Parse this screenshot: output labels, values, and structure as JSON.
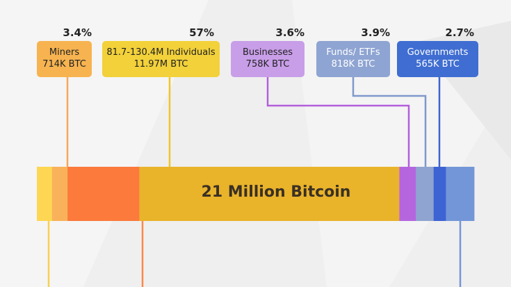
{
  "chart_data": {
    "type": "bar",
    "orientation": "stacked-horizontal",
    "title": "21 Million Bitcoin",
    "total_btc_millions": 21,
    "callouts": [
      {
        "key": "miners",
        "name": "Miners",
        "amount": "714K BTC",
        "percent": "3.4%",
        "color": "#f7b350"
      },
      {
        "key": "individuals",
        "name": "81.7-130.4M Individuals",
        "amount": "11.97M BTC",
        "percent": "57%",
        "color": "#f2d13a"
      },
      {
        "key": "businesses",
        "name": "Businesses",
        "amount": "758K BTC",
        "percent": "3.6%",
        "color": "#c89ee8"
      },
      {
        "key": "funds",
        "name": "Funds/ ETFs",
        "amount": "818K BTC",
        "percent": "3.9%",
        "color": "#8ea4d2"
      },
      {
        "key": "governments",
        "name": "Governments",
        "amount": "565K BTC",
        "percent": "2.7%",
        "color": "#3f6dd1"
      }
    ],
    "segments": [
      {
        "label": "",
        "value": 0.7,
        "color": "#fdd653"
      },
      {
        "label": "Miners",
        "value": 0.714,
        "color": "#f9b25a"
      },
      {
        "label": "",
        "value": 3.3,
        "color": "#fb7a3c"
      },
      {
        "label": "Individuals",
        "value": 11.97,
        "color": "#e9b32a"
      },
      {
        "label": "Businesses",
        "value": 0.758,
        "color": "#b566df"
      },
      {
        "label": "Funds/ ETFs",
        "value": 0.818,
        "color": "#8fa4d0"
      },
      {
        "label": "Governments",
        "value": 0.565,
        "color": "#3e63d3"
      },
      {
        "label": "",
        "value": 1.3,
        "color": "#7396d8"
      }
    ]
  }
}
